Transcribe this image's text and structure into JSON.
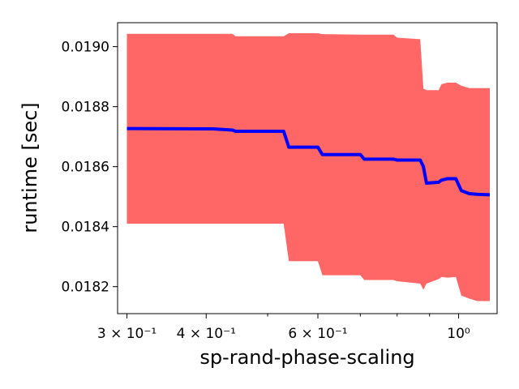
{
  "chart_data": {
    "type": "line",
    "title": "",
    "xlabel": "sp-rand-phase-scaling",
    "ylabel": "runtime [sec]",
    "x_scale": "log",
    "xlim": [
      0.29,
      1.15
    ],
    "ylim": [
      0.01811,
      0.01908
    ],
    "grid": false,
    "legend": "none",
    "x_ticks": [
      {
        "value": 0.3,
        "label": "3 × 10⁻¹"
      },
      {
        "value": 0.4,
        "label": "4 × 10⁻¹"
      },
      {
        "value": 0.6,
        "label": "6 × 10⁻¹"
      },
      {
        "value": 1.0,
        "label": "10⁰"
      }
    ],
    "x_minor_ticks": [
      0.5,
      0.7,
      0.8,
      0.9
    ],
    "y_ticks": [
      {
        "value": 0.0182,
        "label": "0.0182"
      },
      {
        "value": 0.0184,
        "label": "0.0184"
      },
      {
        "value": 0.0186,
        "label": "0.0186"
      },
      {
        "value": 0.0188,
        "label": "0.0188"
      },
      {
        "value": 0.019,
        "label": "0.0190"
      }
    ],
    "series": [
      {
        "color": "#0000ff",
        "band_color": "#ff6666",
        "points": [
          {
            "x": 0.3,
            "y": 0.018727,
            "lo": 0.01841,
            "hi": 0.019043
          },
          {
            "x": 0.41,
            "y": 0.018726,
            "lo": 0.01841,
            "hi": 0.019043
          },
          {
            "x": 0.44,
            "y": 0.018722,
            "lo": 0.01841,
            "hi": 0.019043
          },
          {
            "x": 0.445,
            "y": 0.018718,
            "lo": 0.01841,
            "hi": 0.019035
          },
          {
            "x": 0.53,
            "y": 0.018718,
            "lo": 0.01841,
            "hi": 0.019035
          },
          {
            "x": 0.54,
            "y": 0.018665,
            "lo": 0.018285,
            "hi": 0.019045
          },
          {
            "x": 0.6,
            "y": 0.018665,
            "lo": 0.018285,
            "hi": 0.019045
          },
          {
            "x": 0.61,
            "y": 0.01864,
            "lo": 0.018238,
            "hi": 0.019042
          },
          {
            "x": 0.7,
            "y": 0.01864,
            "lo": 0.018238,
            "hi": 0.01904
          },
          {
            "x": 0.71,
            "y": 0.018625,
            "lo": 0.018222,
            "hi": 0.01904
          },
          {
            "x": 0.79,
            "y": 0.018625,
            "lo": 0.018222,
            "hi": 0.01904
          },
          {
            "x": 0.8,
            "y": 0.018622,
            "lo": 0.018218,
            "hi": 0.01903
          },
          {
            "x": 0.87,
            "y": 0.018622,
            "lo": 0.01821,
            "hi": 0.019025
          },
          {
            "x": 0.88,
            "y": 0.0186,
            "lo": 0.01819,
            "hi": 0.01886
          },
          {
            "x": 0.89,
            "y": 0.018545,
            "lo": 0.01821,
            "hi": 0.018855
          },
          {
            "x": 0.93,
            "y": 0.018548,
            "lo": 0.018225,
            "hi": 0.018855
          },
          {
            "x": 0.94,
            "y": 0.018555,
            "lo": 0.018232,
            "hi": 0.018875
          },
          {
            "x": 0.96,
            "y": 0.01856,
            "lo": 0.01823,
            "hi": 0.01888
          },
          {
            "x": 0.99,
            "y": 0.01856,
            "lo": 0.018232,
            "hi": 0.01888
          },
          {
            "x": 1.01,
            "y": 0.01852,
            "lo": 0.01817,
            "hi": 0.01887
          },
          {
            "x": 1.04,
            "y": 0.01851,
            "lo": 0.01816,
            "hi": 0.018862
          },
          {
            "x": 1.07,
            "y": 0.018508,
            "lo": 0.018152,
            "hi": 0.018862
          },
          {
            "x": 1.12,
            "y": 0.018506,
            "lo": 0.018152,
            "hi": 0.018862
          }
        ]
      }
    ]
  }
}
